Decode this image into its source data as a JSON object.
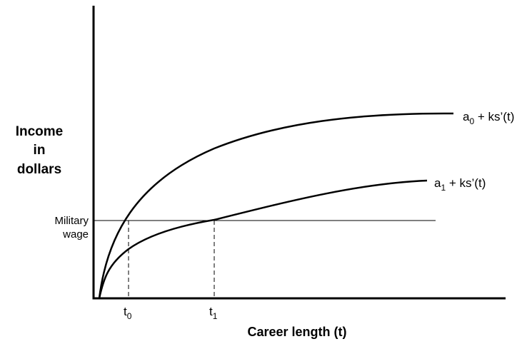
{
  "y_axis_label": [
    "Income",
    "in",
    "dollars"
  ],
  "x_axis_label": "Career length (t)",
  "reference_line_label": [
    "Military",
    "wage"
  ],
  "curves": [
    {
      "base": "a",
      "sub": "0",
      "rest": " + ks’(t)"
    },
    {
      "base": "a",
      "sub": "1",
      "rest": " + ks’(t)"
    }
  ],
  "x_markers": [
    {
      "base": "t",
      "sub": "0"
    },
    {
      "base": "t",
      "sub": "1"
    }
  ]
}
